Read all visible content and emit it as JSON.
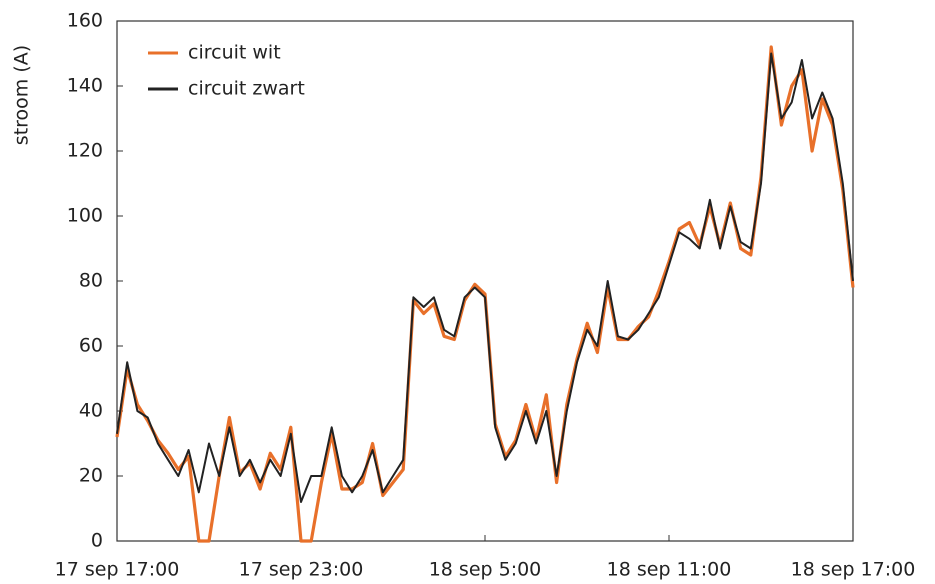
{
  "chart_data": {
    "type": "line",
    "ylabel": "stroom (A)",
    "x": [
      "17 sep 17:00",
      "17 sep 17:20",
      "17 sep 17:40",
      "17 sep 18:00",
      "17 sep 18:20",
      "17 sep 18:40",
      "17 sep 19:00",
      "17 sep 19:20",
      "17 sep 19:40",
      "17 sep 20:00",
      "17 sep 20:20",
      "17 sep 20:40",
      "17 sep 21:00",
      "17 sep 21:20",
      "17 sep 21:40",
      "17 sep 22:00",
      "17 sep 22:20",
      "17 sep 22:40",
      "17 sep 23:00",
      "17 sep 23:20",
      "17 sep 23:40",
      "18 sep 0:00",
      "18 sep 0:20",
      "18 sep 0:40",
      "18 sep 1:00",
      "18 sep 1:20",
      "18 sep 1:40",
      "18 sep 2:00",
      "18 sep 2:20",
      "18 sep 2:40",
      "18 sep 3:00",
      "18 sep 3:20",
      "18 sep 3:40",
      "18 sep 4:00",
      "18 sep 4:20",
      "18 sep 4:40",
      "18 sep 5:00",
      "18 sep 5:20",
      "18 sep 5:40",
      "18 sep 6:00",
      "18 sep 6:20",
      "18 sep 6:40",
      "18 sep 7:00",
      "18 sep 7:20",
      "18 sep 7:40",
      "18 sep 8:00",
      "18 sep 8:20",
      "18 sep 8:40",
      "18 sep 9:00",
      "18 sep 9:20",
      "18 sep 9:40",
      "18 sep 10:00",
      "18 sep 10:20",
      "18 sep 10:40",
      "18 sep 11:00",
      "18 sep 11:20",
      "18 sep 11:40",
      "18 sep 12:00",
      "18 sep 12:20",
      "18 sep 12:40",
      "18 sep 13:00",
      "18 sep 13:20",
      "18 sep 13:40",
      "18 sep 14:00",
      "18 sep 14:20",
      "18 sep 14:40",
      "18 sep 15:00",
      "18 sep 15:20",
      "18 sep 15:40",
      "18 sep 16:00",
      "18 sep 16:20",
      "18 sep 16:40",
      "18 sep 17:00"
    ],
    "series": [
      {
        "name": "circuit wit",
        "color": "#e8702a",
        "values": [
          32,
          53,
          42,
          37,
          31,
          27,
          22,
          26,
          0,
          0,
          20,
          38,
          21,
          24,
          16,
          27,
          22,
          35,
          0,
          0,
          18,
          33,
          16,
          16,
          18,
          30,
          14,
          18,
          22,
          74,
          70,
          73,
          63,
          62,
          74,
          79,
          76,
          36,
          26,
          31,
          42,
          31,
          45,
          18,
          42,
          56,
          67,
          58,
          78,
          62,
          62,
          66,
          69,
          77,
          86,
          96,
          98,
          91,
          103,
          91,
          104,
          90,
          88,
          112,
          152,
          128,
          140,
          145,
          120,
          136,
          128,
          108,
          78
        ]
      },
      {
        "name": "circuit zwart",
        "color": "#222222",
        "values": [
          33,
          55,
          40,
          38,
          30,
          25,
          20,
          28,
          15,
          30,
          20,
          35,
          20,
          25,
          18,
          25,
          20,
          33,
          12,
          20,
          20,
          35,
          20,
          15,
          20,
          28,
          15,
          20,
          25,
          75,
          72,
          75,
          65,
          63,
          75,
          78,
          75,
          35,
          25,
          30,
          40,
          30,
          40,
          20,
          40,
          55,
          65,
          60,
          80,
          63,
          62,
          65,
          70,
          75,
          85,
          95,
          93,
          90,
          105,
          90,
          103,
          92,
          90,
          110,
          150,
          130,
          135,
          148,
          130,
          138,
          130,
          110,
          80
        ]
      }
    ],
    "xlim": [
      "17 sep 17:00",
      "18 sep 17:00"
    ],
    "xticks": [
      "17 sep 17:00",
      "17 sep 23:00",
      "18 sep 5:00",
      "18 sep 11:00",
      "18 sep 17:00"
    ],
    "ylim": [
      0,
      160
    ],
    "yticks": [
      0,
      20,
      40,
      60,
      80,
      100,
      120,
      140,
      160
    ],
    "legend": "upper left"
  }
}
